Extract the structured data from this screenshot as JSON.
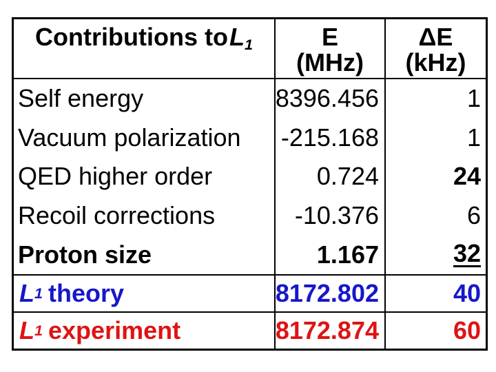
{
  "table": {
    "header": {
      "col1": {
        "text": "Contributions to",
        "math": "L",
        "sub": "1"
      },
      "col2": {
        "line1": "E",
        "line2": "(MHz)"
      },
      "col3": {
        "line1": "ΔE",
        "line2": "(kHz)"
      }
    },
    "columns": [
      "Contributions to L1",
      "E (MHz)",
      "ΔE (kHz)"
    ],
    "body_rows": [
      {
        "label": "Self energy",
        "e_mhz": "8396.456",
        "de_khz": "1"
      },
      {
        "label": "Vacuum polarization",
        "e_mhz": "-215.168",
        "de_khz": "1"
      },
      {
        "label": "QED higher order",
        "e_mhz": "0.724",
        "de_khz": "24"
      },
      {
        "label": "Recoil corrections",
        "e_mhz": "-10.376",
        "de_khz": "6"
      },
      {
        "label": "Proton size",
        "e_mhz": "1.167",
        "de_khz": "32"
      }
    ],
    "summary_rows": [
      {
        "math": "L",
        "sub": "1",
        "label": "theory",
        "e_mhz": "8172.802",
        "de_khz": "40",
        "color": "#1717c9"
      },
      {
        "math": "L",
        "sub": "1",
        "label": "experiment",
        "e_mhz": "8172.874",
        "de_khz": "60",
        "color": "#de1414"
      }
    ],
    "colors": {
      "border": "#000000",
      "text": "#000000",
      "theory_blue": "#1717c9",
      "experiment_red": "#de1414",
      "background": "#ffffff"
    }
  }
}
